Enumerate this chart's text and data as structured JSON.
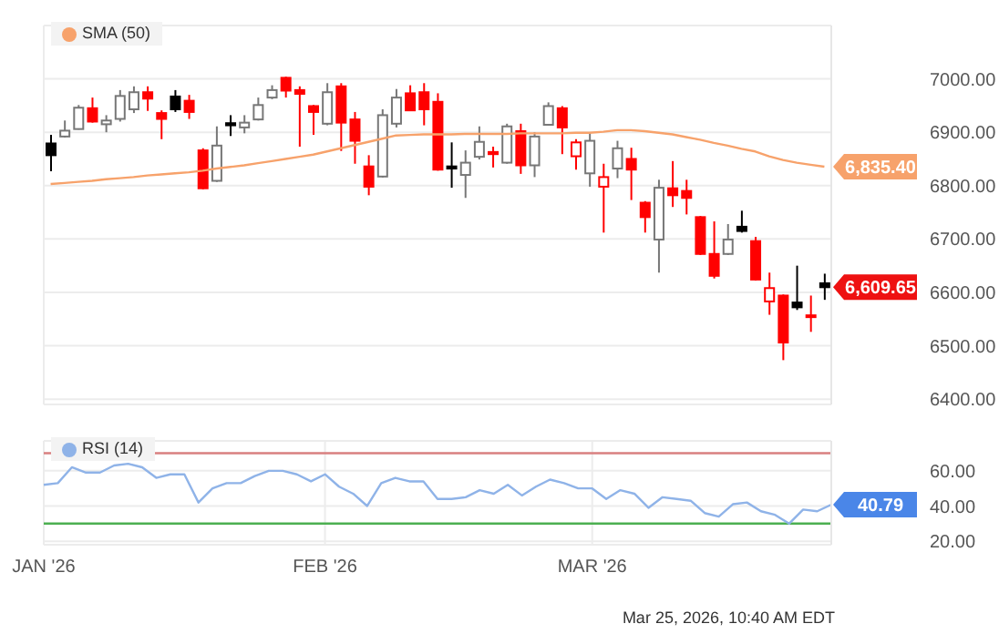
{
  "chart_data": [
    {
      "type": "candlestick",
      "categories": [
        null,
        null,
        null,
        null,
        null,
        null,
        null,
        null,
        null,
        null,
        null,
        null,
        null,
        null,
        null,
        null,
        null,
        null,
        null,
        null,
        null,
        null,
        null,
        null,
        null,
        null,
        null,
        null,
        null,
        null,
        null,
        null,
        null,
        null,
        null,
        null,
        null,
        null,
        null,
        null,
        null,
        null,
        null,
        null,
        null,
        null,
        null,
        null,
        null,
        null,
        null,
        null,
        null,
        null,
        null,
        null,
        null
      ],
      "ohlc": [
        [
          6879,
          6895,
          6827,
          6857
        ],
        [
          6892,
          6922,
          6890,
          6903
        ],
        [
          6906,
          6951,
          6905,
          6946
        ],
        [
          6945,
          6965,
          6918,
          6920
        ],
        [
          6915,
          6932,
          6900,
          6922
        ],
        [
          6925,
          6979,
          6920,
          6968
        ],
        [
          6943,
          6986,
          6936,
          6975
        ],
        [
          6975,
          6986,
          6940,
          6963
        ],
        [
          6936,
          6941,
          6887,
          6925
        ],
        [
          6967,
          6979,
          6938,
          6943
        ],
        [
          6959,
          6970,
          6925,
          6938
        ],
        [
          6866,
          6870,
          6793,
          6795
        ],
        [
          6809,
          6911,
          6807,
          6875
        ],
        [
          6917,
          6932,
          6893,
          6913
        ],
        [
          6909,
          6932,
          6898,
          6918
        ],
        [
          6924,
          6965,
          6922,
          6951
        ],
        [
          6965,
          6988,
          6962,
          6979
        ],
        [
          7002,
          7004,
          6965,
          6978
        ],
        [
          6979,
          6986,
          6873,
          6972
        ],
        [
          6949,
          6951,
          6895,
          6938
        ],
        [
          6916,
          6992,
          6913,
          6975
        ],
        [
          6986,
          6992,
          6865,
          6918
        ],
        [
          6924,
          6938,
          6841,
          6884
        ],
        [
          6836,
          6857,
          6782,
          6798
        ],
        [
          6817,
          6943,
          6815,
          6932
        ],
        [
          6916,
          6981,
          6909,
          6965
        ],
        [
          6973,
          6988,
          6940,
          6941
        ],
        [
          6975,
          6992,
          6913,
          6943
        ],
        [
          6957,
          6973,
          6828,
          6830
        ],
        [
          6836,
          6881,
          6796,
          6832
        ],
        [
          6820,
          6866,
          6777,
          6843
        ],
        [
          6854,
          6911,
          6849,
          6882
        ],
        [
          6863,
          6873,
          6834,
          6859
        ],
        [
          6843,
          6916,
          6841,
          6911
        ],
        [
          6902,
          6916,
          6822,
          6838
        ],
        [
          6838,
          6900,
          6816,
          6892
        ],
        [
          6914,
          6956,
          6913,
          6949
        ],
        [
          6945,
          6949,
          6859,
          6909
        ],
        [
          6855,
          6887,
          6830,
          6881
        ],
        [
          6823,
          6900,
          6798,
          6884
        ],
        [
          6798,
          6841,
          6712,
          6816
        ],
        [
          6832,
          6884,
          6814,
          6870
        ],
        [
          6850,
          6871,
          6773,
          6830
        ],
        [
          6768,
          6771,
          6712,
          6741
        ],
        [
          6699,
          6811,
          6637,
          6796
        ],
        [
          6795,
          6846,
          6760,
          6782
        ],
        [
          6790,
          6811,
          6746,
          6777
        ],
        [
          6741,
          6743,
          6670,
          6672
        ],
        [
          6672,
          6733,
          6626,
          6631
        ],
        [
          6672,
          6728,
          6670,
          6699
        ],
        [
          6723,
          6753,
          6712,
          6715
        ],
        [
          6696,
          6704,
          6622,
          6624
        ],
        [
          6583,
          6637,
          6558,
          6608
        ],
        [
          6594,
          6596,
          6473,
          6506
        ],
        [
          6581,
          6650,
          6567,
          6572
        ],
        [
          6557,
          6594,
          6526,
          6554
        ],
        [
          6617,
          6635,
          6586,
          6609.65
        ]
      ],
      "colors": [
        "#000000",
        "#777777",
        "#777777",
        "#ff0000",
        "#777777",
        "#777777",
        "#777777",
        "#ff0000",
        "#ff0000",
        "#000000",
        "#ff0000",
        "#ff0000",
        "#777777",
        "#000000",
        "#777777",
        "#777777",
        "#777777",
        "#ff0000",
        "#ff0000",
        "#ff0000",
        "#777777",
        "#ff0000",
        "#ff0000",
        "#ff0000",
        "#777777",
        "#777777",
        "#ff0000",
        "#ff0000",
        "#ff0000",
        "#000000",
        "#777777",
        "#777777",
        "#ff0000",
        "#777777",
        "#ff0000",
        "#777777",
        "#777777",
        "#ff0000",
        "#ff0000",
        "#777777",
        "#ff0000",
        "#777777",
        "#ff0000",
        "#ff0000",
        "#777777",
        "#ff0000",
        "#ff0000",
        "#ff0000",
        "#ff0000",
        "#777777",
        "#000000",
        "#ff0000",
        "#ff0000",
        "#ff0000",
        "#000000",
        "#ff0000",
        "#000000"
      ],
      "series": [
        {
          "type": "line",
          "name": "SMA (50)",
          "color": "#f7a26b",
          "values": [
            6803,
            6805,
            6807,
            6809,
            6812,
            6814,
            6816,
            6819,
            6821,
            6823,
            6825,
            6828,
            6832,
            6835,
            6838,
            6842,
            6846,
            6850,
            6854,
            6858,
            6864,
            6870,
            6876,
            6882,
            6888,
            6894,
            6895,
            6896,
            6896,
            6896,
            6897,
            6897,
            6897,
            6897,
            6898,
            6898,
            6898,
            6898,
            6899,
            6899,
            6901,
            6904,
            6904,
            6902,
            6899,
            6896,
            6891,
            6886,
            6880,
            6875,
            6869,
            6864,
            6855,
            6848,
            6843,
            6839,
            6835.4
          ],
          "value_labels": [
            null,
            null,
            null,
            null,
            null,
            null,
            null,
            null,
            null,
            null,
            null,
            null,
            null,
            null,
            null,
            null,
            null,
            null,
            null,
            null,
            null,
            null,
            null,
            null,
            null,
            null,
            null,
            null,
            null,
            null,
            null,
            null,
            null,
            null,
            null,
            null,
            null,
            null,
            null,
            null,
            null,
            null,
            null,
            null,
            null,
            null,
            null,
            null,
            null,
            null,
            null,
            null,
            null,
            null,
            null,
            null,
            "6,835.40"
          ]
        }
      ],
      "ylim": [
        6390,
        7100
      ],
      "yticks": [
        {
          "value": 6400,
          "label": "6400.00"
        },
        {
          "value": 6500,
          "label": "6500.00"
        },
        {
          "value": 6600,
          "label": "6600.00"
        },
        {
          "value": 6700,
          "label": "6700.00"
        },
        {
          "value": 6800,
          "label": "6800.00"
        },
        {
          "value": 6900,
          "label": "6900.00"
        },
        {
          "value": 7000,
          "label": "7000.00"
        }
      ],
      "grid": true,
      "legend": "top left",
      "tick_labels": "y",
      "marker": "none",
      "value_labels": [
        null,
        null,
        null,
        null,
        null,
        null,
        null,
        null,
        null,
        null,
        null,
        null,
        null,
        null,
        null,
        null,
        null,
        null,
        null,
        null,
        null,
        null,
        null,
        null,
        null,
        null,
        null,
        null,
        null,
        null,
        null,
        null,
        null,
        null,
        null,
        null,
        null,
        null,
        null,
        null,
        null,
        null,
        null,
        null,
        null,
        null,
        null,
        null,
        null,
        null,
        null,
        null,
        null,
        null,
        null,
        null,
        "6,609.65"
      ]
    },
    {
      "type": "line",
      "categories": [
        "JAN '26",
        null,
        null,
        null,
        null,
        null,
        null,
        null,
        null,
        null,
        null,
        null,
        null,
        null,
        null,
        null,
        null,
        null,
        null,
        null,
        "FEB '26",
        null,
        null,
        null,
        null,
        null,
        null,
        null,
        null,
        null,
        null,
        null,
        null,
        null,
        null,
        null,
        null,
        null,
        null,
        "MAR '26",
        null,
        null,
        null,
        null,
        null,
        null,
        null,
        null,
        null,
        null,
        null,
        null,
        null,
        null,
        null,
        null,
        null
      ],
      "series": [
        {
          "name": "RSI (14)",
          "color": "#8fb3e8",
          "values": [
            52,
            53,
            62,
            59,
            59,
            63,
            64,
            62,
            56,
            58,
            58,
            42,
            50,
            53,
            53,
            57,
            60,
            60,
            58,
            54,
            58,
            51,
            47,
            40,
            53,
            56,
            54,
            54,
            44,
            44,
            45,
            49,
            47,
            52,
            46,
            51,
            55,
            53,
            50,
            50,
            44,
            49,
            47,
            39,
            45,
            44,
            43,
            36,
            34,
            41,
            42,
            37,
            35,
            30,
            38,
            37,
            40.79
          ],
          "value_labels": [
            null,
            null,
            null,
            null,
            null,
            null,
            null,
            null,
            null,
            null,
            null,
            null,
            null,
            null,
            null,
            null,
            null,
            null,
            null,
            null,
            null,
            null,
            null,
            null,
            null,
            null,
            null,
            null,
            null,
            null,
            null,
            null,
            null,
            null,
            null,
            null,
            null,
            null,
            null,
            null,
            null,
            null,
            null,
            null,
            null,
            null,
            null,
            null,
            null,
            null,
            null,
            null,
            null,
            null,
            null,
            null,
            "40.79"
          ]
        }
      ],
      "ylim": [
        18,
        77
      ],
      "yticks": [
        {
          "value": 20,
          "label": "20.00"
        },
        {
          "value": 40,
          "label": "40.00"
        },
        {
          "value": 60,
          "label": "60.00"
        }
      ],
      "ref_lines": [
        {
          "axis": "y",
          "value": 70,
          "color": "#d98080"
        },
        {
          "axis": "y",
          "value": 30,
          "color": "#4caf50"
        }
      ],
      "grid": true,
      "legend": "top left",
      "marker": "none",
      "annotations": [
        "Mar 25, 2026, 10:40 AM EDT"
      ]
    }
  ]
}
